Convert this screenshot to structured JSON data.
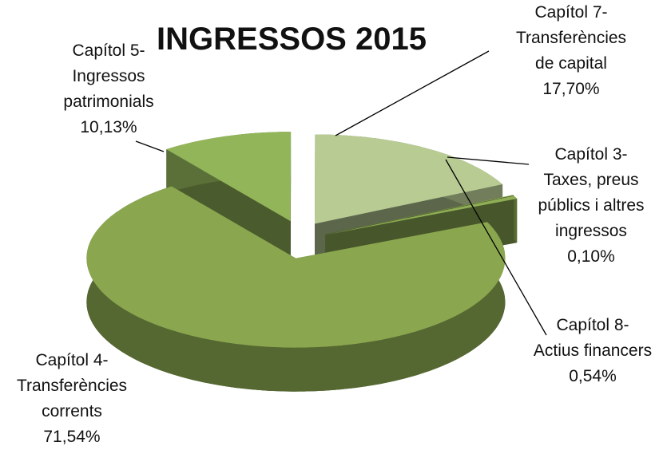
{
  "chart_data": {
    "type": "pie",
    "title": "INGRESSOS 2015",
    "categories": [
      "Capítol 7-\nTransferències\nde capital",
      "Capítol 3-\nTaxes, preus\npúblics i altres\ningressos",
      "Capítol 8-\nActius financers",
      "Capítol 4-\nTransferències\ncorrents",
      "Capítol 5-\nIngressos\npatrimonials"
    ],
    "values": [
      17.7,
      0.1,
      0.54,
      71.54,
      10.13
    ],
    "value_labels": [
      "17,70%",
      "0,10%",
      "0,54%",
      "71,54%",
      "10,13%"
    ],
    "colors": [
      "#b8cb93",
      "#8fae55",
      "#8fae55",
      "#8aa74f",
      "#93b55a"
    ]
  }
}
